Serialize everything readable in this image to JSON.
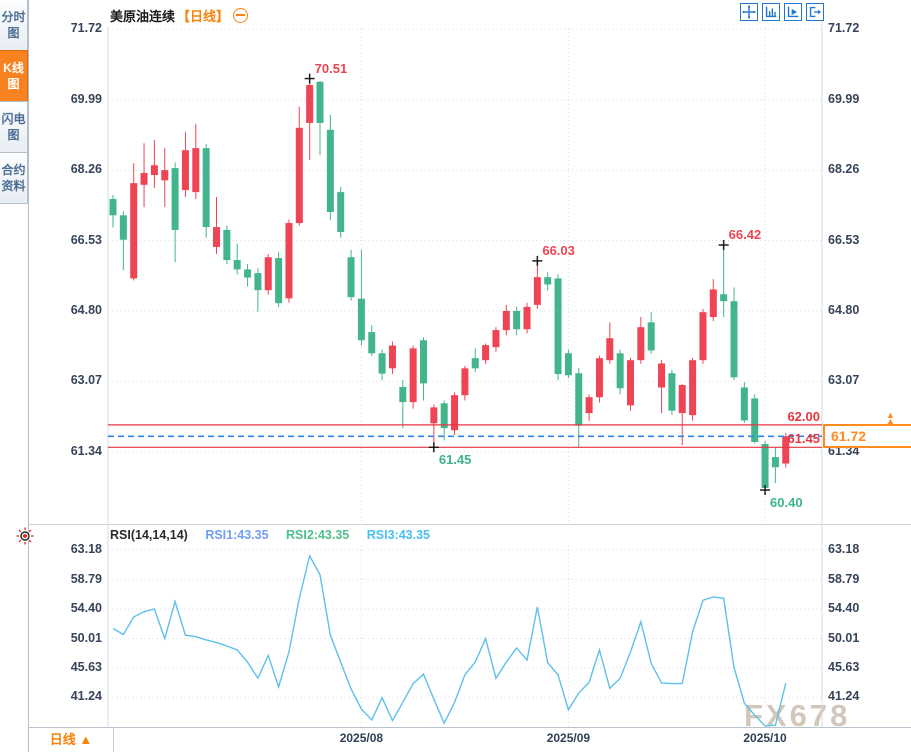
{
  "sidebar": {
    "items": [
      {
        "label": "分时图",
        "active": false
      },
      {
        "label": "K线图",
        "active": true
      },
      {
        "label": "闪电图",
        "active": false
      },
      {
        "label": "合约资料",
        "active": false
      }
    ]
  },
  "header": {
    "title": "美原油连续",
    "timeframe_tag": "【日线】"
  },
  "toolbar": {
    "icons": [
      "crosshair-move",
      "axis-scale",
      "axis-play",
      "exit-right"
    ]
  },
  "bottom_bar": {
    "timeframe_selector": "日线 ▲"
  },
  "watermark": {
    "text": "FX678"
  },
  "chart_data": {
    "type": "candlestick_with_rsi",
    "symbol": "美原油连续",
    "interval": "日线",
    "colors": {
      "up": "#ef4454",
      "down": "#43b58c",
      "rsi_line": "#5fc0ea",
      "accent_orange": "#f8820a",
      "hline_red": "#e8353e",
      "dashed_blue": "#2f86e0",
      "grid": "#d9dde3",
      "cross": "#1d1d1d"
    },
    "price_axis_ticks": [
      "71.72",
      "69.99",
      "68.26",
      "66.53",
      "64.80",
      "63.07",
      "61.34"
    ],
    "candles": [
      [
        67.55,
        67.65,
        66.85,
        67.15
      ],
      [
        67.15,
        67.25,
        65.8,
        66.55
      ],
      [
        65.6,
        68.43,
        65.55,
        67.94
      ],
      [
        67.9,
        68.92,
        67.35,
        68.19
      ],
      [
        68.14,
        69.0,
        67.82,
        68.38
      ],
      [
        68.01,
        68.8,
        67.35,
        68.26
      ],
      [
        68.31,
        68.45,
        66.0,
        66.79
      ],
      [
        67.77,
        69.2,
        67.6,
        68.75
      ],
      [
        67.72,
        69.4,
        67.55,
        68.8
      ],
      [
        68.8,
        68.9,
        66.6,
        66.86
      ],
      [
        66.37,
        67.6,
        66.2,
        66.86
      ],
      [
        66.79,
        66.9,
        65.95,
        66.05
      ],
      [
        66.05,
        66.45,
        65.7,
        65.82
      ],
      [
        65.82,
        65.95,
        65.4,
        65.62
      ],
      [
        65.73,
        65.85,
        64.78,
        65.31
      ],
      [
        65.31,
        66.2,
        65.2,
        66.12
      ],
      [
        66.1,
        66.25,
        64.9,
        64.99
      ],
      [
        65.11,
        67.05,
        65.0,
        66.96
      ],
      [
        66.96,
        69.82,
        66.9,
        69.3
      ],
      [
        69.42,
        70.51,
        68.51,
        70.35
      ],
      [
        70.43,
        70.45,
        68.63,
        69.42
      ],
      [
        69.25,
        69.62,
        67.03,
        67.23
      ],
      [
        67.72,
        67.85,
        66.6,
        66.74
      ],
      [
        66.12,
        66.3,
        65.05,
        65.14
      ],
      [
        65.1,
        66.3,
        63.95,
        64.08
      ],
      [
        64.28,
        64.45,
        63.7,
        63.76
      ],
      [
        63.76,
        63.85,
        63.1,
        63.26
      ],
      [
        63.39,
        64.05,
        63.25,
        63.95
      ],
      [
        62.93,
        63.1,
        61.92,
        62.56
      ],
      [
        62.56,
        63.95,
        62.4,
        63.88
      ],
      [
        64.08,
        64.15,
        62.6,
        63.02
      ],
      [
        62.04,
        62.5,
        61.45,
        62.43
      ],
      [
        62.53,
        62.6,
        61.62,
        61.92
      ],
      [
        61.87,
        62.8,
        61.75,
        62.73
      ],
      [
        62.73,
        63.45,
        62.6,
        63.39
      ],
      [
        63.64,
        63.88,
        63.3,
        63.39
      ],
      [
        63.59,
        64.0,
        63.5,
        63.96
      ],
      [
        63.91,
        64.4,
        63.8,
        64.33
      ],
      [
        64.33,
        64.95,
        64.2,
        64.8
      ],
      [
        64.8,
        64.9,
        64.2,
        64.35
      ],
      [
        64.35,
        65.0,
        64.25,
        64.9
      ],
      [
        64.95,
        66.03,
        64.85,
        65.63
      ],
      [
        65.63,
        65.75,
        65.3,
        65.45
      ],
      [
        65.6,
        65.7,
        63.1,
        63.25
      ],
      [
        63.76,
        63.85,
        63.15,
        63.22
      ],
      [
        63.27,
        63.4,
        61.45,
        61.98
      ],
      [
        62.29,
        62.75,
        62.1,
        62.68
      ],
      [
        62.68,
        63.7,
        62.55,
        63.64
      ],
      [
        63.59,
        64.52,
        63.5,
        64.13
      ],
      [
        63.76,
        63.85,
        62.75,
        62.9
      ],
      [
        62.48,
        63.65,
        62.35,
        63.59
      ],
      [
        63.59,
        64.65,
        63.5,
        64.4
      ],
      [
        64.52,
        64.77,
        63.75,
        63.83
      ],
      [
        62.92,
        63.6,
        62.29,
        63.51
      ],
      [
        63.27,
        63.35,
        62.25,
        62.35
      ],
      [
        62.29,
        63.0,
        61.5,
        62.98
      ],
      [
        62.24,
        63.65,
        62.1,
        63.59
      ],
      [
        63.59,
        64.85,
        63.5,
        64.77
      ],
      [
        64.65,
        65.58,
        64.55,
        65.33
      ],
      [
        65.21,
        66.42,
        64.65,
        65.04
      ],
      [
        65.04,
        65.38,
        63.1,
        63.17
      ],
      [
        62.92,
        63.05,
        62.05,
        62.11
      ],
      [
        62.65,
        62.75,
        61.55,
        61.58
      ],
      [
        61.53,
        61.6,
        60.4,
        60.45
      ],
      [
        61.21,
        61.45,
        60.57,
        60.96
      ],
      [
        61.05,
        61.8,
        60.95,
        61.72
      ]
    ],
    "annotations": [
      {
        "candle": 19,
        "price": 70.51,
        "label": "70.51",
        "kind": "high",
        "color": "#ef4454"
      },
      {
        "candle": 41,
        "price": 66.03,
        "label": "66.03",
        "kind": "high",
        "color": "#ef4454"
      },
      {
        "candle": 59,
        "price": 66.42,
        "label": "66.42",
        "kind": "high",
        "color": "#ef4454"
      },
      {
        "candle": 31,
        "price": 61.45,
        "label": "61.45",
        "kind": "low",
        "color": "#3cb488"
      },
      {
        "candle": 63,
        "price": 60.4,
        "label": "60.40",
        "kind": "low",
        "color": "#3cb488"
      }
    ],
    "h_lines": [
      {
        "price": 62.0,
        "label": "62.00",
        "color": "#e8353e",
        "style": "solid"
      },
      {
        "price": 61.45,
        "label": "61.45",
        "color": "#e8353e",
        "style": "solid"
      },
      {
        "price": 61.72,
        "label": "",
        "color": "#2f86e0",
        "style": "dashed"
      }
    ],
    "current_price": {
      "label": "61.72"
    },
    "month_gridlines": [
      {
        "candle": 24,
        "label": "2025/08"
      },
      {
        "candle": 44,
        "label": "2025/09"
      },
      {
        "candle": 63,
        "label": "2025/10"
      }
    ],
    "rsi": {
      "title": "RSI(14,14,14)",
      "series": [
        {
          "text": "RSI1:43.35",
          "color": "#6f9ef5"
        },
        {
          "text": "RSI2:43.35",
          "color": "#4fc08d"
        },
        {
          "text": "RSI3:43.35",
          "color": "#49c0f0"
        }
      ],
      "axis_ticks": [
        "63.18",
        "58.79",
        "54.40",
        "50.01",
        "45.63",
        "41.24"
      ],
      "values": [
        51.5,
        50.6,
        53.2,
        54.0,
        54.4,
        50.0,
        55.5,
        50.5,
        50.3,
        49.8,
        49.4,
        48.9,
        48.3,
        46.5,
        44.1,
        47.5,
        42.8,
        48.0,
        56.0,
        62.3,
        59.5,
        50.5,
        46.5,
        42.5,
        39.5,
        37.9,
        41.2,
        37.8,
        40.5,
        43.3,
        44.7,
        41.0,
        37.4,
        40.5,
        44.6,
        46.5,
        50.0,
        44.1,
        46.5,
        48.6,
        46.8,
        54.7,
        46.4,
        44.6,
        39.4,
        41.9,
        43.5,
        48.3,
        42.6,
        44.1,
        48.0,
        52.5,
        46.3,
        43.4,
        43.3,
        43.3,
        51.0,
        55.7,
        56.2,
        56.0,
        45.7,
        40.4,
        38.6,
        37.0,
        37.1,
        43.35
      ]
    }
  }
}
